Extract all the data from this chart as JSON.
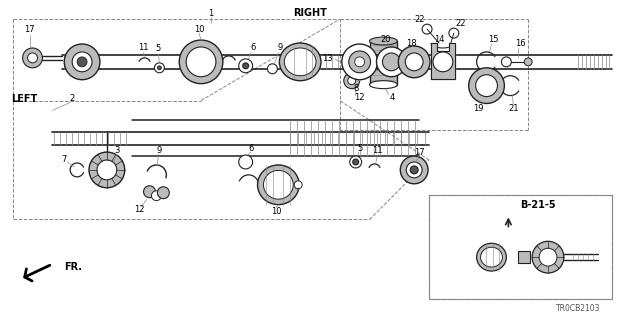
{
  "bg_color": "#ffffff",
  "diagram_code": "TR0CB2103",
  "right_label": "RIGHT",
  "left_label": "LEFT",
  "fr_label": "FR.",
  "ref_label": "B-21-5",
  "line_color": "#222222",
  "gray": "#888888",
  "light_gray": "#bbbbbb",
  "dark_gray": "#555555"
}
